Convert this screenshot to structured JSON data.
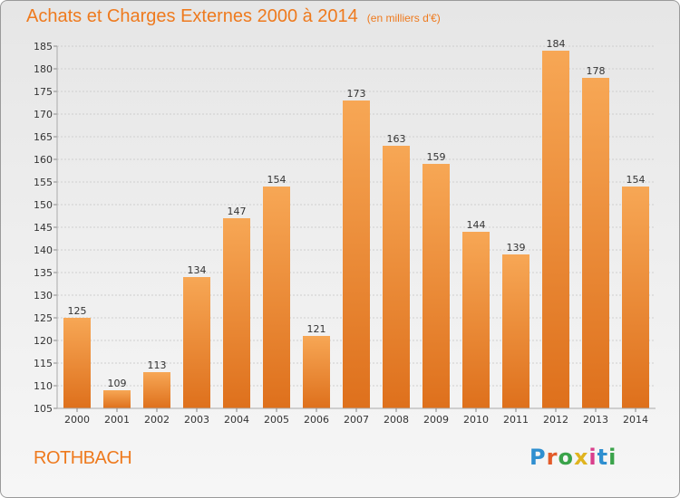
{
  "header": {
    "title": "Achats et Charges Externes 2000 à 2014",
    "subtitle": "(en milliers d'€)"
  },
  "footer": {
    "commune": "ROTHBACH",
    "logo_text": "Proxiti"
  },
  "colors": {
    "bar_top": "#f7a755",
    "bar_bottom": "#de701c",
    "accent": "#ee7a1e"
  },
  "chart_data": {
    "type": "bar",
    "title": "Achats et Charges Externes 2000 à 2014",
    "subtitle": "(en milliers d'€)",
    "categories": [
      "2000",
      "2001",
      "2002",
      "2003",
      "2004",
      "2005",
      "2006",
      "2007",
      "2008",
      "2009",
      "2010",
      "2011",
      "2012",
      "2013",
      "2014"
    ],
    "values": [
      125,
      109,
      113,
      134,
      147,
      154,
      121,
      173,
      163,
      159,
      144,
      139,
      184,
      178,
      154
    ],
    "ylim": [
      105,
      185
    ],
    "yticks": [
      105,
      110,
      115,
      120,
      125,
      130,
      135,
      140,
      145,
      150,
      155,
      160,
      165,
      170,
      175,
      180,
      185
    ],
    "grid": true,
    "data_labels": true
  }
}
